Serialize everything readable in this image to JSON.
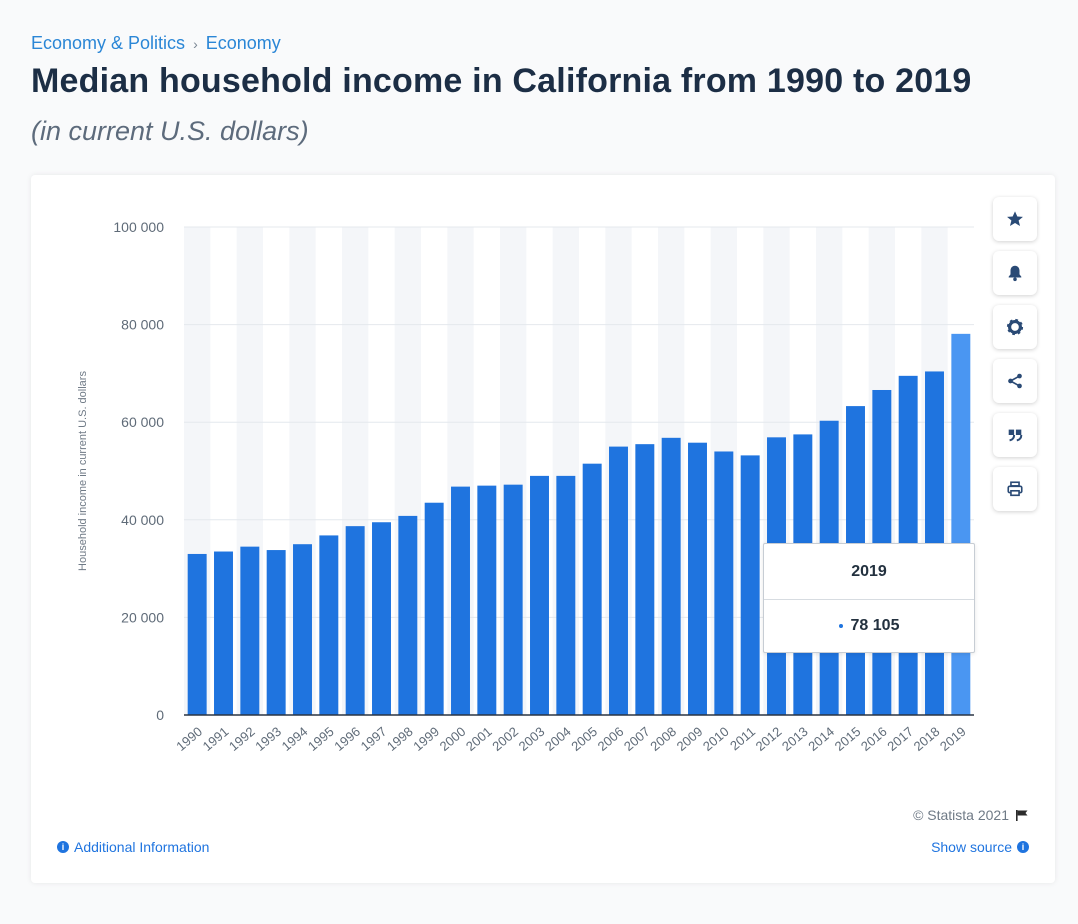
{
  "breadcrumb": {
    "parent": "Economy & Politics",
    "separator": "›",
    "current": "Economy"
  },
  "header": {
    "title": "Median household income in California from 1990 to 2019",
    "subtitle": "(in current U.S. dollars)"
  },
  "tools": [
    {
      "name": "favorite",
      "icon": "star-icon"
    },
    {
      "name": "notify",
      "icon": "bell-icon"
    },
    {
      "name": "settings",
      "icon": "gear-icon"
    },
    {
      "name": "share",
      "icon": "share-icon"
    },
    {
      "name": "cite",
      "icon": "quote-icon"
    },
    {
      "name": "print",
      "icon": "printer-icon"
    }
  ],
  "tooltip": {
    "year": "2019",
    "value": "78 105"
  },
  "footer": {
    "credit": "© Statista 2021",
    "additional_info": "Additional Information",
    "show_source": "Show source"
  },
  "colors": {
    "bar": "#1f74df",
    "bar_highlight": "#4a96f2",
    "link": "#1f74df",
    "title": "#1c2e45"
  },
  "chart_data": {
    "type": "bar",
    "title": "Median household income in California from 1990 to 2019",
    "subtitle": "(in current U.S. dollars)",
    "xlabel": "",
    "ylabel": "Household income in current U.S. dollars",
    "ylim": [
      0,
      100000
    ],
    "yticks": [
      0,
      20000,
      40000,
      60000,
      80000,
      100000
    ],
    "ytick_labels": [
      "0",
      "20 000",
      "40 000",
      "60 000",
      "80 000",
      "100 000"
    ],
    "grid": true,
    "categories": [
      "1990",
      "1991",
      "1992",
      "1993",
      "1994",
      "1995",
      "1996",
      "1997",
      "1998",
      "1999",
      "2000",
      "2001",
      "2002",
      "2003",
      "2004",
      "2005",
      "2006",
      "2007",
      "2008",
      "2009",
      "2010",
      "2011",
      "2012",
      "2013",
      "2014",
      "2015",
      "2016",
      "2017",
      "2018",
      "2019"
    ],
    "values": [
      33000,
      33500,
      34500,
      33800,
      35000,
      36800,
      38700,
      39500,
      40800,
      43500,
      46800,
      47000,
      47200,
      49000,
      49000,
      51500,
      55000,
      55500,
      56800,
      55800,
      54000,
      53200,
      56900,
      57500,
      60300,
      63300,
      66600,
      69500,
      70400,
      78105
    ],
    "highlight_index": 29
  }
}
